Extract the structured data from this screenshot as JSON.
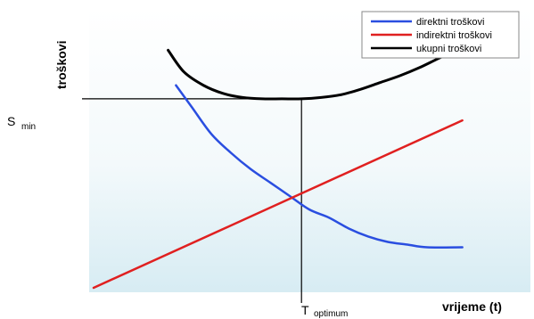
{
  "chart_data": {
    "type": "line",
    "title": "",
    "ylabel": "troškovi",
    "xlabel": "vrijeme (t)",
    "xlim": [
      0,
      10
    ],
    "ylim": [
      0,
      10
    ],
    "series": [
      {
        "name": "direktni troškovi",
        "color": "#2a4ee0",
        "x": [
          2.1,
          2.5,
          3.0,
          3.5,
          4.0,
          4.5,
          5.0,
          5.5,
          6.0,
          6.5,
          7.0,
          7.5,
          8.0,
          8.5,
          9.4
        ],
        "y": [
          7.5,
          6.7,
          5.7,
          5.0,
          4.4,
          3.9,
          3.4,
          2.9,
          2.6,
          2.2,
          1.9,
          1.7,
          1.6,
          1.5,
          1.5
        ]
      },
      {
        "name": "indirektni troškovi",
        "color": "#e02020",
        "x": [
          0.0,
          9.4
        ],
        "y": [
          0.0,
          6.2
        ]
      },
      {
        "name": "ukupni troškovi",
        "color": "#000000",
        "x": [
          1.9,
          2.3,
          2.8,
          3.3,
          3.8,
          4.3,
          4.8,
          5.3,
          5.8,
          6.3,
          6.8,
          7.3,
          7.8,
          8.3,
          8.8,
          9.4
        ],
        "y": [
          8.8,
          8.0,
          7.5,
          7.2,
          7.05,
          7.0,
          7.0,
          7.0,
          7.05,
          7.15,
          7.35,
          7.6,
          7.85,
          8.15,
          8.5,
          8.9
        ]
      }
    ],
    "reference": {
      "s_min_label": "S",
      "s_min_sub": "min",
      "t_opt_label": "T",
      "t_opt_sub": "optimum",
      "optimum_x": 5.3,
      "s_min_y": 7.0
    },
    "legend_position": "top-right",
    "grid": false
  }
}
